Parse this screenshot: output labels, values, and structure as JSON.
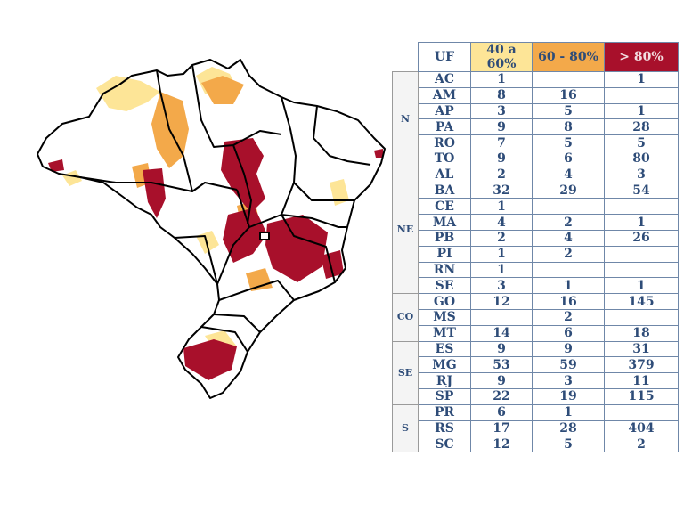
{
  "colors": {
    "low": "#fde597",
    "mid": "#f3a94a",
    "high": "#a8102b",
    "border": "#000000",
    "table_text": "#2e4c78"
  },
  "table": {
    "headers": [
      "UF",
      "40 a 60%",
      "60 - 80%",
      "> 80%"
    ],
    "regions": [
      {
        "name": "N",
        "rows": [
          [
            "AC",
            "1",
            "",
            "1"
          ],
          [
            "AM",
            "8",
            "16",
            ""
          ],
          [
            "AP",
            "3",
            "5",
            "1"
          ],
          [
            "PA",
            "9",
            "8",
            "28"
          ],
          [
            "RO",
            "7",
            "5",
            "5"
          ],
          [
            "TO",
            "9",
            "6",
            "80"
          ]
        ]
      },
      {
        "name": "NE",
        "rows": [
          [
            "AL",
            "2",
            "4",
            "3"
          ],
          [
            "BA",
            "32",
            "29",
            "54"
          ],
          [
            "CE",
            "1",
            "",
            ""
          ],
          [
            "MA",
            "4",
            "2",
            "1"
          ],
          [
            "PB",
            "2",
            "4",
            "26"
          ],
          [
            "PI",
            "1",
            "2",
            ""
          ],
          [
            "RN",
            "1",
            "",
            ""
          ],
          [
            "SE",
            "3",
            "1",
            "1"
          ]
        ]
      },
      {
        "name": "CO",
        "rows": [
          [
            "GO",
            "12",
            "16",
            "145"
          ],
          [
            "MS",
            "",
            "2",
            ""
          ],
          [
            "MT",
            "14",
            "6",
            "18"
          ]
        ]
      },
      {
        "name": "SE",
        "rows": [
          [
            "ES",
            "9",
            "9",
            "31"
          ],
          [
            "MG",
            "53",
            "59",
            "379"
          ],
          [
            "RJ",
            "9",
            "3",
            "11"
          ],
          [
            "SP",
            "22",
            "19",
            "115"
          ]
        ]
      },
      {
        "name": "S",
        "rows": [
          [
            "PR",
            "6",
            "1",
            ""
          ],
          [
            "RS",
            "17",
            "28",
            "404"
          ],
          [
            "SC",
            "12",
            "5",
            "2"
          ]
        ]
      }
    ]
  }
}
